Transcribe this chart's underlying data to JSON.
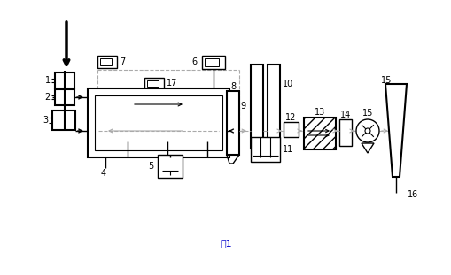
{
  "bg_color": "#ffffff",
  "line_color": "#000000",
  "dashed_color": "#aaaaaa",
  "title": "图1",
  "title_fontsize": 8,
  "title_color": "#0000cc"
}
